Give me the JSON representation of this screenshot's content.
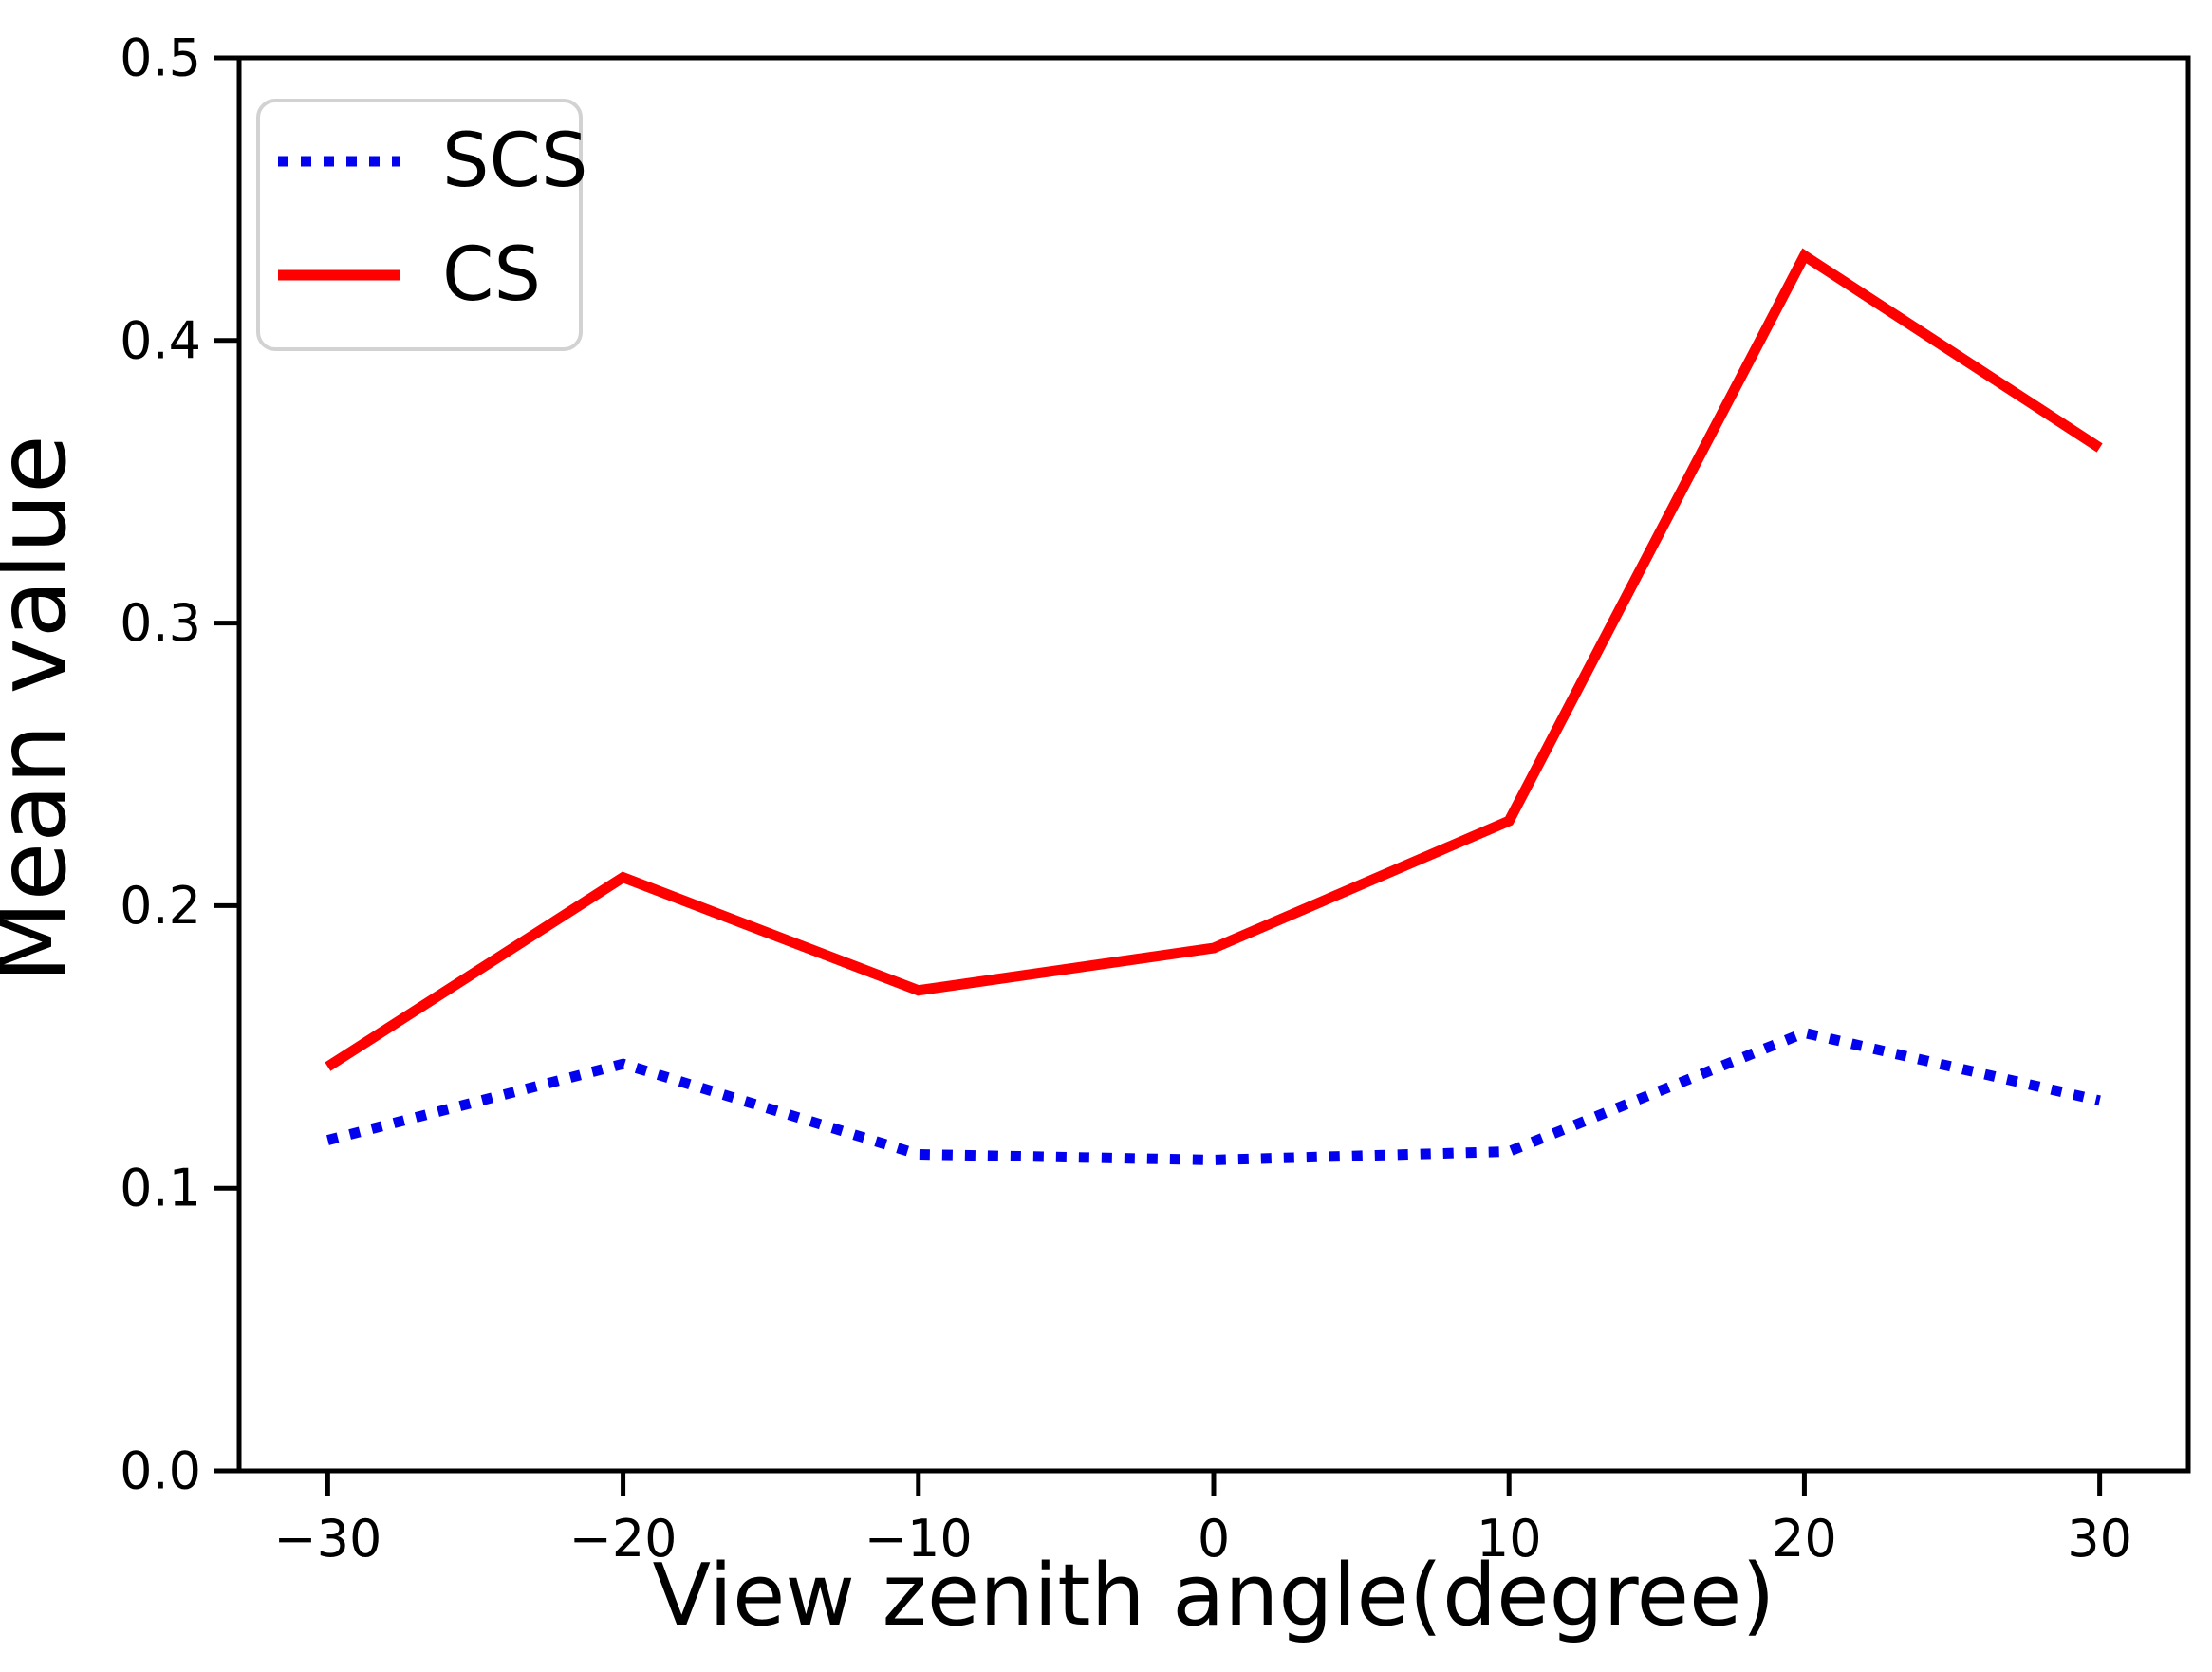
{
  "chart_data": {
    "type": "line",
    "title": "",
    "xlabel": "View zenith angle(degree)",
    "ylabel": "Mean value",
    "x": [
      -30,
      -20,
      -10,
      0,
      10,
      20,
      30
    ],
    "x_tick_labels": [
      "−30",
      "−20",
      "−10",
      "0",
      "10",
      "20",
      "30"
    ],
    "y_ticks": [
      0.0,
      0.1,
      0.2,
      0.3,
      0.4,
      0.5
    ],
    "y_tick_labels": [
      "0.0",
      "0.1",
      "0.2",
      "0.3",
      "0.4",
      "0.5"
    ],
    "xlim": [
      -33,
      33
    ],
    "ylim": [
      0,
      0.5
    ],
    "grid": false,
    "legend": {
      "position": "upper-left",
      "entries": [
        {
          "label": "SCS",
          "color": "#0202ee",
          "style": "dotted"
        },
        {
          "label": "CS",
          "color": "#ff0000",
          "style": "solid"
        }
      ]
    },
    "series": [
      {
        "name": "SCS",
        "color": "#0202ee",
        "style": "dotted",
        "values": [
          0.117,
          0.144,
          0.112,
          0.11,
          0.113,
          0.155,
          0.131
        ]
      },
      {
        "name": "CS",
        "color": "#ff0000",
        "style": "solid",
        "values": [
          0.143,
          0.21,
          0.17,
          0.185,
          0.23,
          0.43,
          0.362
        ]
      }
    ],
    "colors": {
      "axis": "#000000",
      "legend_border": "#d2d2d2",
      "background": "#ffffff"
    }
  }
}
